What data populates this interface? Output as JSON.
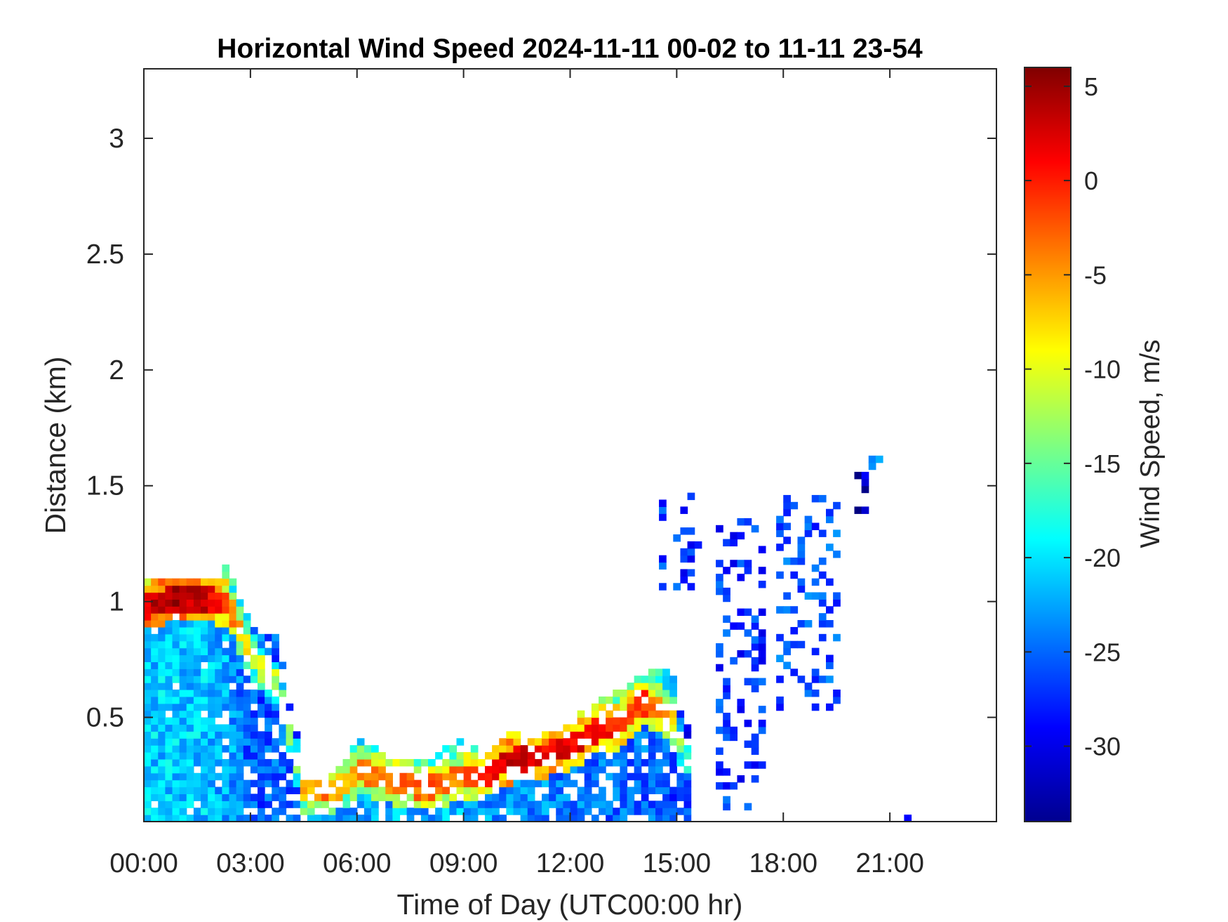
{
  "chart_data": {
    "type": "heatmap",
    "title": "Horizontal Wind Speed 2024-11-11 00-02 to 11-11 23-54",
    "xlabel": "Time of Day (UTC00:00 hr)",
    "ylabel": "Distance (km)",
    "colorbar_label": "Wind Speed, m/s",
    "xlim": [
      0,
      24
    ],
    "ylim": [
      0.05,
      3.3
    ],
    "clim": [
      -34,
      6
    ],
    "x_ticks": [
      0,
      3,
      6,
      9,
      12,
      15,
      18,
      21
    ],
    "x_tick_labels": [
      "00:00",
      "03:00",
      "06:00",
      "09:00",
      "12:00",
      "15:00",
      "18:00",
      "21:00"
    ],
    "y_ticks": [
      0.5,
      1,
      1.5,
      2,
      2.5,
      3
    ],
    "y_tick_labels": [
      "0.5",
      "1",
      "1.5",
      "2",
      "2.5",
      "3"
    ],
    "colorbar_ticks": [
      5,
      0,
      -5,
      -10,
      -15,
      -20,
      -25,
      -30
    ],
    "colorbar_tick_labels": [
      "5",
      "0",
      "-5",
      "-10",
      "-15",
      "-20",
      "-25",
      "-30"
    ],
    "colormap": "jet",
    "grid": false,
    "x_resolution_hr": 0.2,
    "y_resolution_km": 0.03,
    "profiles": [
      {
        "x": 0.0,
        "top": 1.1,
        "core": 0.97,
        "core_value": 3,
        "surface_value": -21
      },
      {
        "x": 0.5,
        "top": 1.1,
        "core": 0.99,
        "core_value": 4,
        "surface_value": -21
      },
      {
        "x": 1.0,
        "top": 1.1,
        "core": 1.0,
        "core_value": 4,
        "surface_value": -21
      },
      {
        "x": 1.5,
        "top": 1.1,
        "core": 1.0,
        "core_value": 3,
        "surface_value": -21
      },
      {
        "x": 2.0,
        "top": 1.1,
        "core": 0.99,
        "core_value": 1,
        "surface_value": -22
      },
      {
        "x": 2.3,
        "top": 1.15,
        "core": 0.98,
        "core_value": -2,
        "surface_value": -22
      },
      {
        "x": 2.7,
        "top": 0.95,
        "core": 0.82,
        "core_value": -8,
        "surface_value": -25
      },
      {
        "x": 3.2,
        "top": 0.85,
        "core": 0.7,
        "core_value": -10,
        "surface_value": -26
      },
      {
        "x": 3.7,
        "top": 0.85,
        "core": 0.62,
        "core_value": -12,
        "surface_value": -25
      },
      {
        "x": 4.2,
        "top": 0.45,
        "core": 0.3,
        "core_value": -14,
        "surface_value": -25
      },
      {
        "x": 4.4,
        "top": 0.22,
        "core": 0.17,
        "core_value": -7,
        "surface_value": -23
      },
      {
        "x": 5.0,
        "top": 0.22,
        "core": 0.16,
        "core_value": -4,
        "surface_value": -22
      },
      {
        "x": 5.6,
        "top": 0.3,
        "core": 0.2,
        "core_value": -7,
        "surface_value": -22
      },
      {
        "x": 6.0,
        "top": 0.4,
        "core": 0.26,
        "core_value": -5,
        "surface_value": -22
      },
      {
        "x": 7.0,
        "top": 0.3,
        "core": 0.2,
        "core_value": -3,
        "surface_value": -22
      },
      {
        "x": 8.0,
        "top": 0.3,
        "core": 0.18,
        "core_value": -3,
        "surface_value": -22
      },
      {
        "x": 8.7,
        "top": 0.4,
        "core": 0.22,
        "core_value": -4,
        "surface_value": -22
      },
      {
        "x": 9.5,
        "top": 0.34,
        "core": 0.24,
        "core_value": -1,
        "surface_value": -23
      },
      {
        "x": 10.2,
        "top": 0.42,
        "core": 0.3,
        "core_value": 3,
        "surface_value": -23
      },
      {
        "x": 11.0,
        "top": 0.4,
        "core": 0.32,
        "core_value": 2,
        "surface_value": -24
      },
      {
        "x": 11.8,
        "top": 0.45,
        "core": 0.35,
        "core_value": 2,
        "surface_value": -24
      },
      {
        "x": 12.5,
        "top": 0.55,
        "core": 0.42,
        "core_value": 1,
        "surface_value": -25
      },
      {
        "x": 13.2,
        "top": 0.6,
        "core": 0.45,
        "core_value": 0,
        "surface_value": -25
      },
      {
        "x": 14.0,
        "top": 0.68,
        "core": 0.55,
        "core_value": -1,
        "surface_value": -25
      },
      {
        "x": 14.7,
        "top": 0.7,
        "core": 0.5,
        "core_value": -6,
        "surface_value": -26
      },
      {
        "x": 15.2,
        "top": 0.45,
        "core": 0.3,
        "core_value": -18,
        "surface_value": -27
      }
    ],
    "upper_patches": [
      {
        "x": [
          14.5,
          15.6
        ],
        "y": [
          1.05,
          1.45
        ],
        "value": -27
      },
      {
        "x": [
          16.1,
          17.3
        ],
        "y": [
          0.1,
          1.35
        ],
        "value": -27
      },
      {
        "x": [
          17.8,
          19.4
        ],
        "y": [
          0.5,
          1.45
        ],
        "value": -26
      },
      {
        "x": [
          20.0,
          20.3
        ],
        "y": [
          1.35,
          1.55
        ],
        "value": -31
      },
      {
        "x": [
          20.4,
          20.6
        ],
        "y": [
          1.57,
          1.62
        ],
        "value": -24
      },
      {
        "x": [
          21.4,
          21.8
        ],
        "y": [
          0.05,
          0.12
        ],
        "value": -27
      }
    ]
  }
}
